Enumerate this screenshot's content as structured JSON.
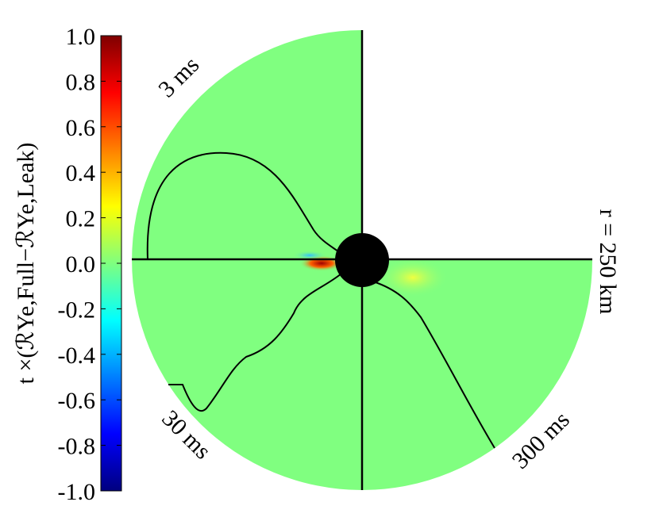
{
  "chart_data": {
    "type": "polar-map",
    "colorbar": {
      "label": "t ×(ℛYe,Full−ℛYe,Leak)",
      "lim": [
        -1,
        1
      ],
      "ticks": [
        {
          "value": 1,
          "label": "1.0"
        },
        0.8,
        0.6,
        0.4,
        0.2,
        {
          "value": 0,
          "label": "0.0"
        },
        {
          "value": -0.2,
          "label": "-0.2"
        },
        {
          "value": -0.4,
          "label": "-0.4"
        },
        {
          "value": -0.6,
          "label": "-0.6"
        },
        {
          "value": -0.8,
          "label": "-0.8"
        },
        {
          "value": -1,
          "label": "-1.0"
        }
      ],
      "colors": [
        "#00007f",
        "#0000ff",
        "#007fff",
        "#00ffff",
        "#7fff7f",
        "#ffff00",
        "#ff7f00",
        "#ff0000",
        "#7f0000"
      ]
    },
    "annotations": [
      "3 ms",
      "30 ms",
      "300 ms",
      "r = 250 km"
    ],
    "field_color": "#80ff80"
  }
}
